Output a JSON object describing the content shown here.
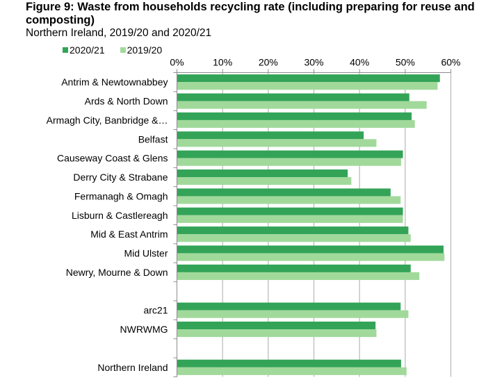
{
  "chart_data": {
    "type": "bar",
    "orientation": "horizontal",
    "title": "Figure 9: Waste from households recycling rate (including preparing for reuse and composting)",
    "subtitle": "Northern Ireland, 2019/20 and 2020/21",
    "xlabel": "",
    "ylabel": "",
    "xlim": [
      0,
      60
    ],
    "x_ticks": [
      0,
      10,
      20,
      30,
      40,
      50,
      60
    ],
    "x_tick_labels": [
      "0%",
      "10%",
      "20%",
      "30%",
      "40%",
      "50%",
      "60%"
    ],
    "x_axis_position": "top",
    "grid": true,
    "legend_position": "top-left",
    "categories": [
      "Antrim & Newtownabbey",
      "Ards & North Down",
      "Armagh City, Banbridge &…",
      "Belfast",
      "Causeway Coast & Glens",
      "Derry City & Strabane",
      "Fermanagh & Omagh",
      "Lisburn & Castlereagh",
      "Mid & East Antrim",
      "Mid Ulster",
      "Newry, Mourne & Down",
      "",
      "arc21",
      "NWRWMG",
      "",
      "Northern Ireland"
    ],
    "series": [
      {
        "name": "2020/21",
        "color": "#33a457",
        "values": [
          57.6,
          50.9,
          51.4,
          40.9,
          49.5,
          37.4,
          46.8,
          49.5,
          50.7,
          58.4,
          51.2,
          null,
          49.0,
          43.5,
          null,
          49.1
        ]
      },
      {
        "name": "2019/20",
        "color": "#a1d99b",
        "values": [
          57.1,
          54.7,
          52.1,
          43.7,
          49.1,
          38.2,
          49.0,
          49.5,
          51.2,
          58.6,
          53.1,
          null,
          50.7,
          43.7,
          null,
          50.3
        ]
      }
    ]
  },
  "colors": {
    "gridline": "#b7b7b7",
    "axis": "#8c8c8c"
  }
}
